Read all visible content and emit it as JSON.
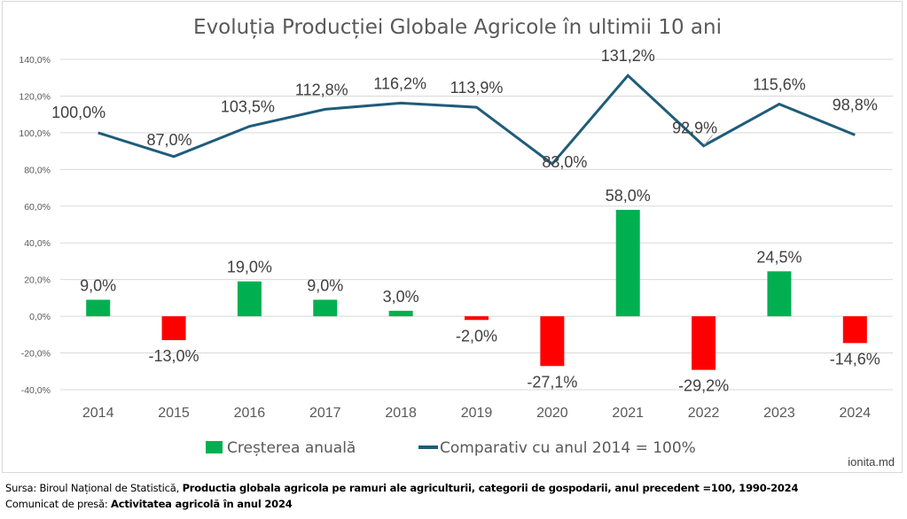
{
  "chart_data": {
    "type": "bar+line",
    "title": "Evoluția Producției Globale Agricole în ultimii 10 ani",
    "xlabel": "",
    "ylabel": "",
    "ylim": [
      -40,
      140
    ],
    "y_ticks": [
      "140,0%",
      "120,0%",
      "100,0%",
      "80,0%",
      "60,0%",
      "40,0%",
      "20,0%",
      "0,0%",
      "-20,0%",
      "-40,0%"
    ],
    "y_tick_values": [
      140,
      120,
      100,
      80,
      60,
      40,
      20,
      0,
      -20,
      -40
    ],
    "grid": true,
    "categories": [
      "2014",
      "2015",
      "2016",
      "2017",
      "2018",
      "2019",
      "2020",
      "2021",
      "2022",
      "2023",
      "2024"
    ],
    "series": [
      {
        "name": "Creșterea anuală",
        "type": "bar",
        "color_positive": "#00b050",
        "color_negative": "#ff0000",
        "values": [
          9.0,
          -13.0,
          19.0,
          9.0,
          3.0,
          -2.0,
          -27.1,
          58.0,
          -29.2,
          24.5,
          -14.6
        ],
        "labels": [
          "9,0%",
          "-13,0%",
          "19,0%",
          "9,0%",
          "3,0%",
          "-2,0%",
          "-27,1%",
          "58,0%",
          "-29,2%",
          "24,5%",
          "-14,6%"
        ]
      },
      {
        "name": "Comparativ cu anul 2014 = 100%",
        "type": "line",
        "color": "#1f5c7a",
        "values": [
          100.0,
          87.0,
          103.5,
          112.8,
          116.2,
          113.9,
          83.0,
          131.2,
          92.9,
          115.6,
          98.8
        ],
        "labels": [
          "100,0%",
          "87,0%",
          "103,5%",
          "112,8%",
          "116,2%",
          "113,9%",
          "83,0%",
          "131,2%",
          "92,9%",
          "115,6%",
          "98,8%"
        ]
      }
    ],
    "legend": {
      "position": "bottom",
      "items": [
        "Creșterea anuală",
        "Comparativ cu anul 2014 = 100%"
      ]
    },
    "credit": "ionita.md"
  },
  "footer": {
    "source_prefix": "Sursa: Biroul Național de Statistică, ",
    "source_title": "Productia globala agricola pe ramuri ale agriculturii, categorii de gospodarii, anul precedent =100, 1990-2024",
    "press_prefix": "Comunicat de presă: ",
    "press_title": "Activitatea agricolă în anul 2024"
  }
}
